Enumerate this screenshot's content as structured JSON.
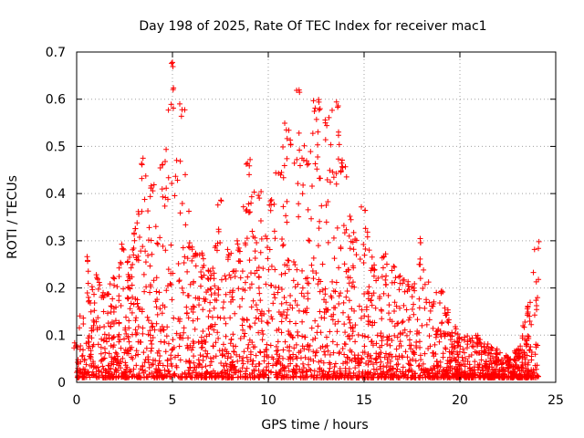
{
  "chart_data": {
    "type": "scatter",
    "title": "Day 198 of 2025, Rate Of TEC Index for receiver mac1",
    "xlabel": "GPS time / hours",
    "ylabel": "ROTI / TECUs",
    "xlim": [
      0,
      25
    ],
    "ylim": [
      0,
      0.7
    ],
    "xticks": [
      "0",
      "5",
      "10",
      "15",
      "20",
      "25"
    ],
    "yticks": [
      "0",
      "0.1",
      "0.2",
      "0.3",
      "0.4",
      "0.5",
      "0.6",
      "0.7"
    ],
    "grid": true,
    "marker": "plus",
    "color": "#ff0000",
    "envelope": {
      "x": [
        0.0,
        0.5,
        1.0,
        1.5,
        2.0,
        2.5,
        3.0,
        3.5,
        4.0,
        4.5,
        5.0,
        5.5,
        6.0,
        6.5,
        7.0,
        7.5,
        8.0,
        8.5,
        9.0,
        9.5,
        10.0,
        10.5,
        11.0,
        11.5,
        12.0,
        12.5,
        13.0,
        13.5,
        14.0,
        14.5,
        15.0,
        15.5,
        16.0,
        16.5,
        17.0,
        17.5,
        18.0,
        18.5,
        19.0,
        19.5,
        20.0,
        20.5,
        21.0,
        21.5,
        22.0,
        22.5,
        23.0,
        23.5,
        24.0
      ],
      "upper": [
        0.09,
        0.27,
        0.23,
        0.2,
        0.23,
        0.3,
        0.33,
        0.48,
        0.42,
        0.47,
        0.68,
        0.58,
        0.3,
        0.28,
        0.24,
        0.39,
        0.27,
        0.3,
        0.48,
        0.41,
        0.38,
        0.45,
        0.55,
        0.62,
        0.48,
        0.6,
        0.56,
        0.6,
        0.46,
        0.32,
        0.38,
        0.25,
        0.28,
        0.25,
        0.23,
        0.21,
        0.31,
        0.18,
        0.2,
        0.14,
        0.1,
        0.1,
        0.1,
        0.08,
        0.07,
        0.06,
        0.07,
        0.16,
        0.3
      ]
    }
  }
}
